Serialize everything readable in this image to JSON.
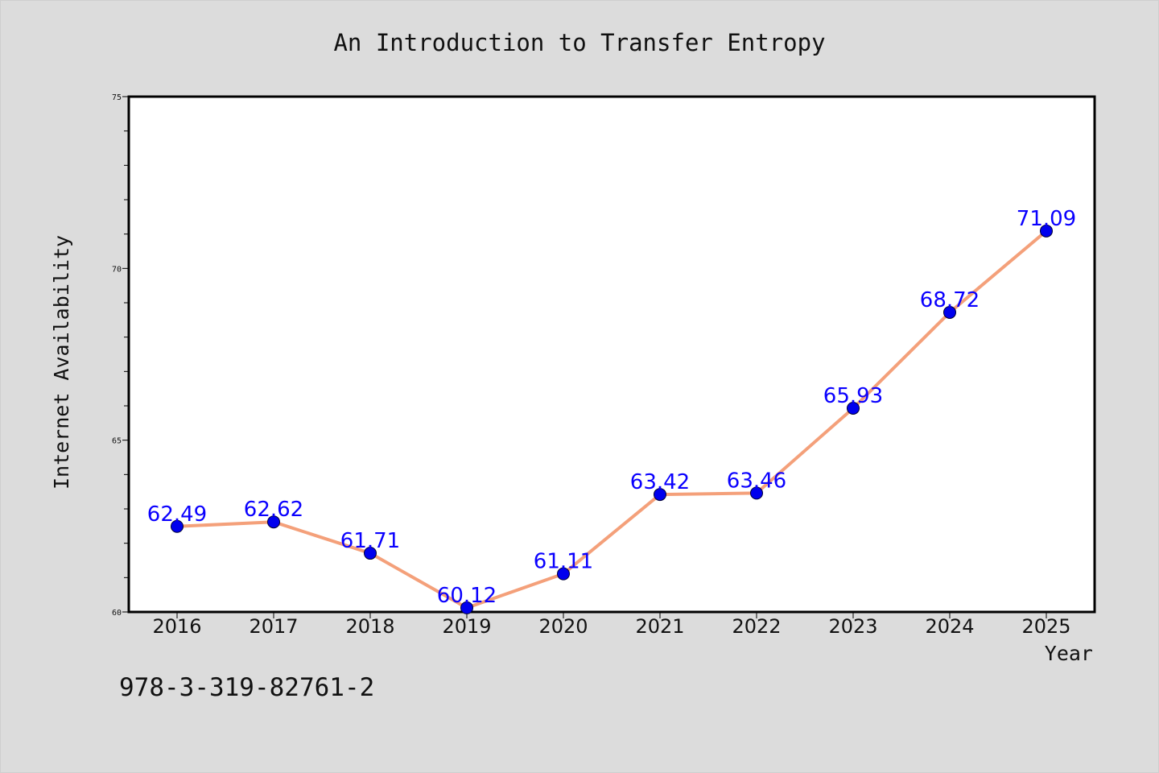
{
  "chart_data": {
    "type": "line",
    "title": "An Introduction to Transfer Entropy",
    "xlabel": "Year",
    "ylabel": "Internet Availability",
    "categories": [
      "2016",
      "2017",
      "2018",
      "2019",
      "2020",
      "2021",
      "2022",
      "2023",
      "2024",
      "2025"
    ],
    "values": [
      62.49,
      62.62,
      61.71,
      60.12,
      61.11,
      63.42,
      63.46,
      65.93,
      68.72,
      71.09
    ],
    "value_labels": [
      "62.49",
      "62.62",
      "61.71",
      "60.12",
      "61.11",
      "63.42",
      "63.46",
      "65.93",
      "68.72",
      "71.09"
    ],
    "ylim": [
      60,
      75
    ],
    "yticks": [
      "60",
      "65",
      "70",
      "75"
    ],
    "line_color": "#f4a07a",
    "marker_color": "#0000ee",
    "label_color": "#0a00ff",
    "grid": false
  },
  "footer": {
    "isbn": "978-3-319-82761-2"
  }
}
